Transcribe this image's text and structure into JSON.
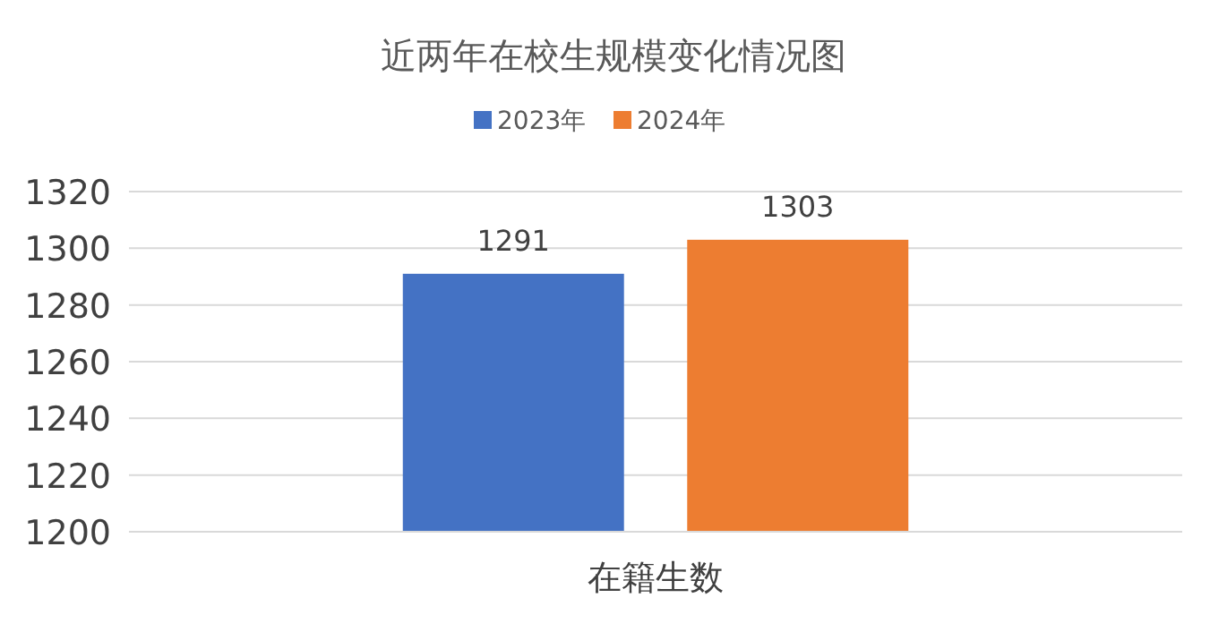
{
  "chart_data": {
    "type": "bar",
    "title": "近两年在校生规模变化情况图",
    "categories": [
      "在籍生数"
    ],
    "series": [
      {
        "name": "2023年",
        "color": "#4472c4",
        "values": [
          1291
        ]
      },
      {
        "name": "2024年",
        "color": "#ed7d31",
        "values": [
          1303
        ]
      }
    ],
    "ylim": [
      1200,
      1320
    ],
    "yticks": [
      1200,
      1220,
      1240,
      1260,
      1280,
      1300,
      1320
    ],
    "grid": "y",
    "legend": "top",
    "data_labels": true
  }
}
